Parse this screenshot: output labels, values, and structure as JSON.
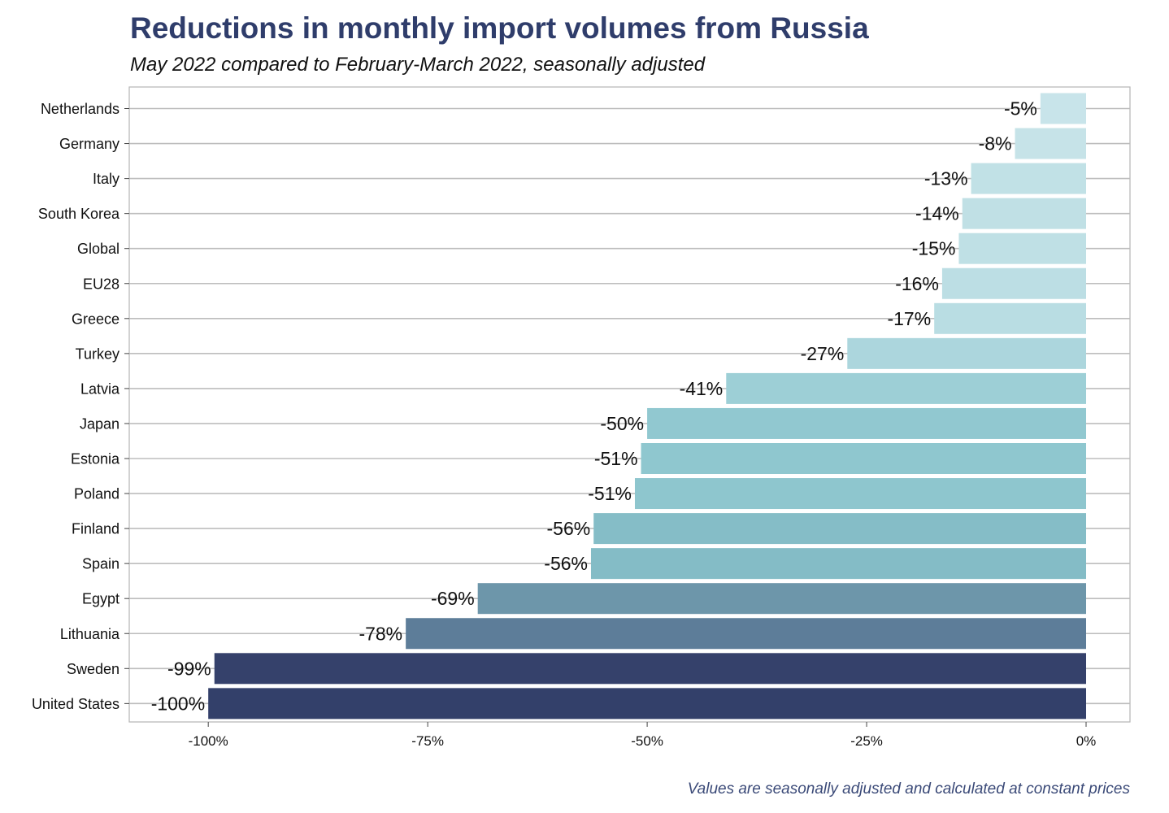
{
  "chart_data": {
    "type": "bar",
    "orientation": "horizontal",
    "title": "Reductions in monthly import volumes from Russia",
    "subtitle": "May 2022 compared to February-March 2022, seasonally adjusted",
    "caption": "Values are seasonally adjusted and calculated at constant prices",
    "xlim": [
      -109,
      5
    ],
    "x_ticks": [
      -100,
      -75,
      -50,
      -25,
      0
    ],
    "x_tick_labels": [
      "-100%",
      "-75%",
      "-50%",
      "-25%",
      "0%"
    ],
    "grid": "horizontal",
    "categories": [
      "Netherlands",
      "Germany",
      "Italy",
      "South Korea",
      "Global",
      "EU28",
      "Greece",
      "Turkey",
      "Latvia",
      "Japan",
      "Estonia",
      "Poland",
      "Finland",
      "Spain",
      "Egypt",
      "Lithuania",
      "Sweden",
      "United States"
    ],
    "values": [
      -5.2,
      -8.1,
      -13.1,
      -14.1,
      -14.5,
      -16.4,
      -17.3,
      -27.2,
      -41,
      -50,
      -50.7,
      -51.4,
      -56.1,
      -56.4,
      -69.3,
      -77.5,
      -99.3,
      -100
    ],
    "value_labels": [
      "-5%",
      "-8%",
      "-13%",
      "-14%",
      "-15%",
      "-16%",
      "-17%",
      "-27%",
      "-41%",
      "-50%",
      "-51%",
      "-51%",
      "-56%",
      "-56%",
      "-69%",
      "-78%",
      "-99%",
      "-100%"
    ],
    "colors": [
      "#c8e4ea",
      "#c6e3e8",
      "#c1e1e6",
      "#c0e0e5",
      "#bfe0e5",
      "#bcdee4",
      "#b9dde3",
      "#acd6dd",
      "#9dcfd6",
      "#91c8d0",
      "#8fc7cf",
      "#8ec6ce",
      "#85bdc7",
      "#84bcc6",
      "#6d96aa",
      "#5d7d99",
      "#35416b",
      "#33406a"
    ]
  }
}
